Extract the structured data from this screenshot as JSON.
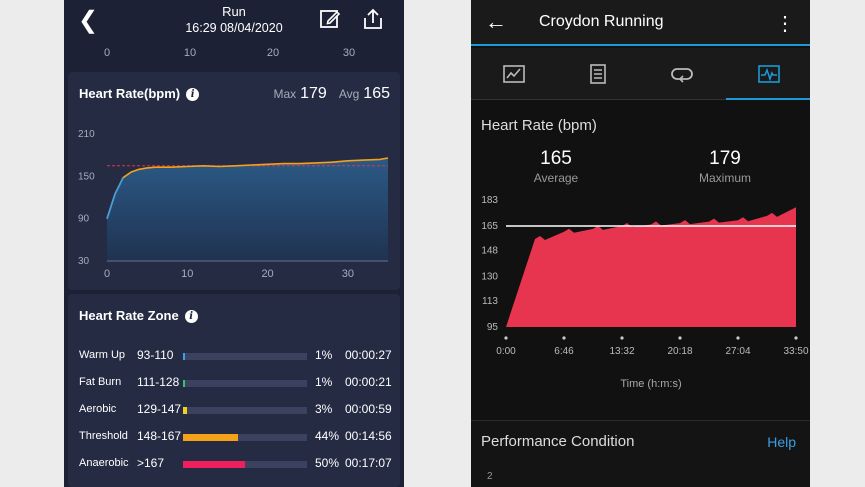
{
  "left_app": {
    "header": {
      "title": "Run",
      "datetime": "16:29 08/04/2020"
    },
    "top_axis_ticks": [
      "0",
      "10",
      "20",
      "30"
    ],
    "heart_rate": {
      "title": "Heart Rate(bpm)",
      "max_label": "Max",
      "max_value": "179",
      "avg_label": "Avg",
      "avg_value": "165"
    },
    "heart_rate_zone": {
      "title": "Heart Rate Zone",
      "zones": [
        {
          "name": "Warm Up",
          "range": "93-110",
          "percent": "1%",
          "time": "00:00:27",
          "fraction": 0.01,
          "color": "#3aa0e8"
        },
        {
          "name": "Fat Burn",
          "range": "111-128",
          "percent": "1%",
          "time": "00:00:21",
          "fraction": 0.01,
          "color": "#35c46a"
        },
        {
          "name": "Aerobic",
          "range": "129-147",
          "percent": "3%",
          "time": "00:00:59",
          "fraction": 0.03,
          "color": "#f2d21f"
        },
        {
          "name": "Threshold",
          "range": "148-167",
          "percent": "44%",
          "time": "00:14:56",
          "fraction": 0.44,
          "color": "#f5a11a"
        },
        {
          "name": "Anaerobic",
          "range": ">167",
          "percent": "50%",
          "time": "00:17:07",
          "fraction": 0.5,
          "color": "#ee1f5c"
        }
      ]
    }
  },
  "right_app": {
    "header": {
      "title": "Croydon Running"
    },
    "heart_rate": {
      "title": "Heart Rate (bpm)",
      "average_value": "165",
      "average_label": "Average",
      "maximum_value": "179",
      "maximum_label": "Maximum"
    },
    "performance": {
      "title": "Performance Condition",
      "help_label": "Help",
      "axis_tick": "2"
    }
  },
  "chart_data": [
    {
      "type": "area",
      "x": [
        0,
        1,
        2,
        3,
        4,
        5,
        6,
        8,
        10,
        12,
        14,
        16,
        18,
        20,
        22,
        24,
        26,
        28,
        30,
        32,
        34,
        35
      ],
      "series": [
        {
          "values": [
            90,
            125,
            148,
            156,
            160,
            162,
            163,
            163,
            164,
            165,
            164,
            165,
            166,
            167,
            168,
            168,
            169,
            170,
            172,
            173,
            174,
            176
          ]
        }
      ],
      "max_reference": 165,
      "x_ticks": [
        "0",
        "10",
        "20",
        "30"
      ],
      "y_ticks": [
        "30",
        "90",
        "150",
        "210"
      ],
      "xlim": [
        0,
        35
      ],
      "ylim": [
        30,
        210
      ],
      "colors": {
        "fill_top": "#2b5a86",
        "fill_bottom": "#203250",
        "line": "#f5a11a",
        "start_line": "#3aa0e8",
        "reference": "#e0354a"
      }
    },
    {
      "type": "area",
      "x": [
        "0:00",
        "3:23",
        "6:46",
        "10:09",
        "13:32",
        "16:55",
        "20:18",
        "23:41",
        "27:04",
        "30:27",
        "33:50"
      ],
      "series": [
        {
          "values": [
            95,
            156,
            161,
            163,
            165,
            166,
            167,
            168,
            169,
            172,
            178
          ]
        }
      ],
      "average_reference": 165,
      "x_ticks": [
        "0:00",
        "6:46",
        "13:32",
        "20:18",
        "27:04",
        "33:50"
      ],
      "y_ticks": [
        "95",
        "113",
        "130",
        "148",
        "165",
        "183"
      ],
      "xlabel": "Time (h:m:s)",
      "ylim": [
        95,
        183
      ],
      "colors": {
        "fill": "#e8354f",
        "reference": "#ffffff"
      }
    }
  ]
}
